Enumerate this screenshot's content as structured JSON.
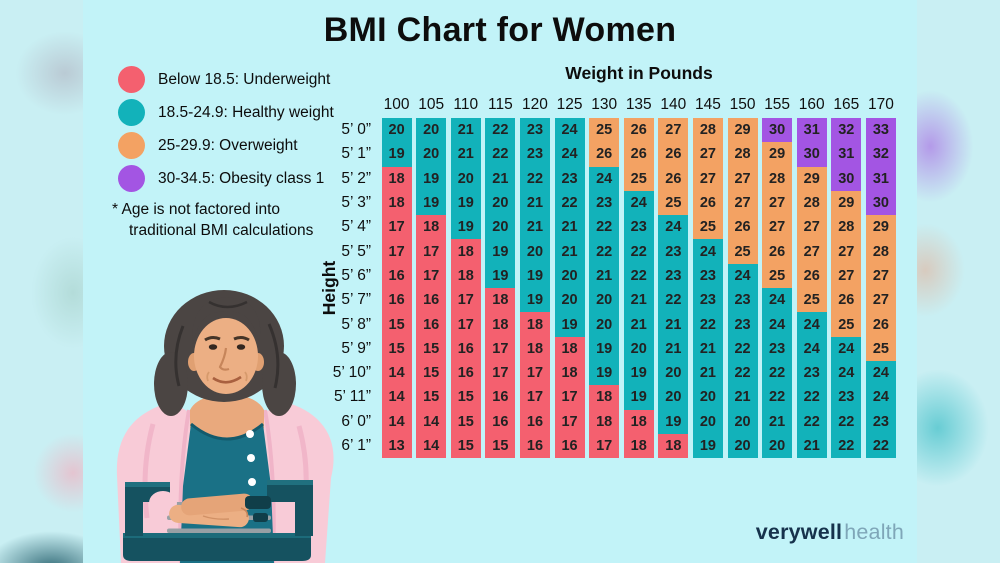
{
  "title": "BMI Chart for Women",
  "legend": {
    "items": [
      {
        "label": "Below 18.5: Underweight",
        "category": "underweight"
      },
      {
        "label": "18.5-24.9: Healthy weight",
        "category": "healthy"
      },
      {
        "label": "25-29.9: Overweight",
        "category": "overweight"
      },
      {
        "label": "30-34.5: Obesity class 1",
        "category": "obesity1"
      }
    ],
    "note_line1": "* Age is not factored into",
    "note_line2": "traditional BMI calculations"
  },
  "colors": {
    "background": "#C2F3F8",
    "underweight": "#F4606F",
    "healthy": "#12B2BA",
    "overweight": "#F3A263",
    "obesity1": "#A355E3",
    "cell_text": "#222222",
    "brand_dark": "#16324C",
    "brand_light": "#7FA6B8"
  },
  "chart_data": {
    "type": "heatmap",
    "title": "BMI Chart for Women",
    "xlabel": "Weight in Pounds",
    "ylabel": "Height",
    "legend_position": "left",
    "columns_weights_lb": [
      100,
      105,
      110,
      115,
      120,
      125,
      130,
      135,
      140,
      145,
      150,
      155,
      160,
      165,
      170
    ],
    "rows_heights": [
      "5’ 0”",
      "5’ 1”",
      "5’ 2”",
      "5’ 3”",
      "5’ 4”",
      "5’ 5”",
      "5’ 6”",
      "5’ 7”",
      "5’ 8”",
      "5’ 9”",
      "5’ 10”",
      "5’ 11”",
      "6’ 0”",
      "6’ 1”"
    ],
    "bmi_values": [
      [
        20,
        20,
        21,
        22,
        23,
        24,
        25,
        26,
        27,
        28,
        29,
        30,
        31,
        32,
        33
      ],
      [
        19,
        20,
        21,
        22,
        23,
        24,
        26,
        26,
        26,
        27,
        28,
        29,
        30,
        31,
        32
      ],
      [
        18,
        19,
        20,
        21,
        22,
        23,
        24,
        25,
        26,
        27,
        27,
        28,
        29,
        30,
        31
      ],
      [
        18,
        19,
        19,
        20,
        21,
        22,
        23,
        24,
        25,
        26,
        27,
        27,
        28,
        29,
        30
      ],
      [
        17,
        18,
        19,
        20,
        21,
        21,
        22,
        23,
        24,
        25,
        26,
        27,
        27,
        28,
        29
      ],
      [
        17,
        17,
        18,
        19,
        20,
        21,
        22,
        22,
        23,
        24,
        25,
        26,
        27,
        27,
        28
      ],
      [
        16,
        17,
        18,
        19,
        19,
        20,
        21,
        22,
        23,
        23,
        24,
        25,
        26,
        27,
        27
      ],
      [
        16,
        16,
        17,
        18,
        19,
        20,
        20,
        21,
        22,
        23,
        23,
        24,
        25,
        26,
        27
      ],
      [
        15,
        16,
        17,
        18,
        18,
        19,
        20,
        21,
        21,
        22,
        23,
        24,
        24,
        25,
        26
      ],
      [
        15,
        15,
        16,
        17,
        18,
        18,
        19,
        20,
        21,
        21,
        22,
        23,
        24,
        24,
        25
      ],
      [
        14,
        15,
        16,
        17,
        17,
        18,
        19,
        19,
        20,
        21,
        22,
        22,
        23,
        24,
        24
      ],
      [
        14,
        15,
        15,
        16,
        17,
        17,
        18,
        19,
        20,
        20,
        21,
        22,
        22,
        23,
        24
      ],
      [
        14,
        14,
        15,
        16,
        16,
        17,
        18,
        18,
        19,
        20,
        20,
        21,
        22,
        22,
        23
      ],
      [
        13,
        14,
        15,
        15,
        16,
        16,
        17,
        18,
        18,
        19,
        20,
        20,
        21,
        22,
        22
      ]
    ],
    "category_thresholds": {
      "underweight_max": 18,
      "healthy_max": 24,
      "overweight_max": 29
    }
  },
  "branding": {
    "bold": "verywell",
    "light": "health"
  }
}
